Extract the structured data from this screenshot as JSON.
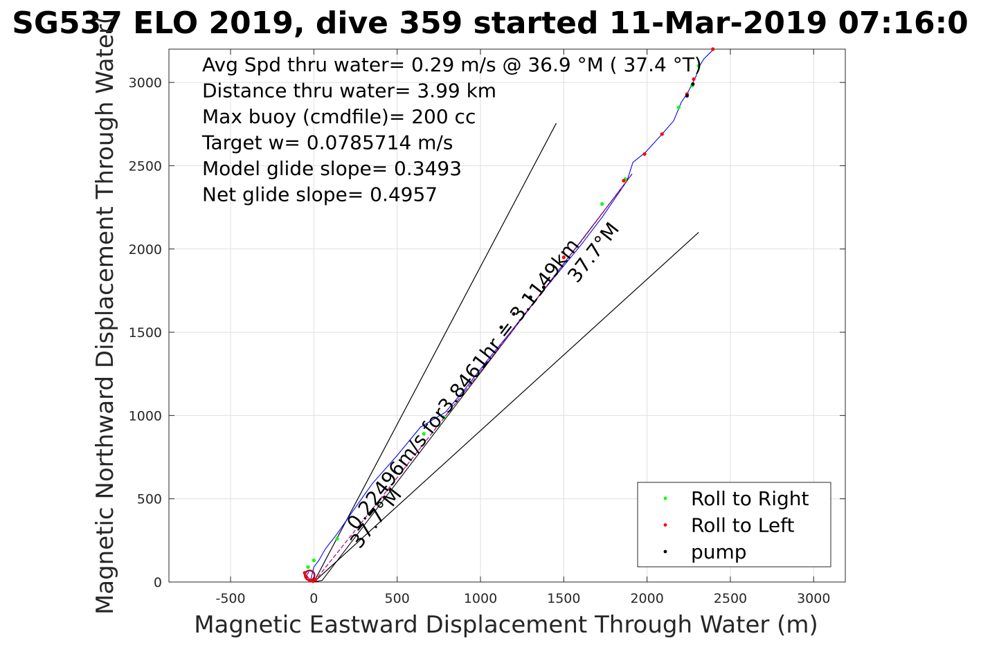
{
  "chart_data": {
    "type": "line",
    "title": "SG537 ELO 2019, dive 359 started 11-Mar-2019 07:16:0",
    "xlabel": "Magnetic Eastward Displacement Through Water (m)",
    "ylabel": "Magnetic Northward Displacement Through Water(",
    "xlim": [
      -870,
      3190
    ],
    "ylim": [
      0,
      3200
    ],
    "xticks": [
      -500,
      0,
      500,
      1000,
      1500,
      2000,
      2500,
      3000
    ],
    "xtick_labels": [
      "-500",
      "0",
      "500",
      "1000",
      "1500",
      "2000",
      "2500",
      "3000"
    ],
    "yticks": [
      0,
      500,
      1000,
      1500,
      2000,
      2500,
      3000
    ],
    "ytick_labels": [
      "0",
      "500",
      "1000",
      "1500",
      "2000",
      "2500",
      "3000"
    ],
    "grid": true,
    "legend_position": "bottom-right",
    "stats": [
      "Avg Spd thru water=  0.29 m/s @  36.9 °M ( 37.4 °T)",
      "Distance thru water=  3.99 km",
      "Max buoy (cmdfile)= 200 cc",
      "Target w= 0.0785714 m/s",
      "Model glide slope= 0.3493",
      "Net glide slope= 0.4957"
    ],
    "annotations": [
      {
        "text": "0.22496m/s for3.8461hr = 3.1149km",
        "x": 255,
        "y": 305,
        "angle": -52
      },
      {
        "text": "37.7°M",
        "x": 275,
        "y": 195,
        "angle": -52
      },
      {
        "text": "37.7°M",
        "x": 1580,
        "y": 1790,
        "angle": -52
      }
    ],
    "cone_lines": [
      {
        "x": [
          0,
          1455
        ],
        "y": [
          0,
          2755
        ],
        "color": "#000000"
      },
      {
        "x": [
          0,
          2310
        ],
        "y": [
          0,
          2100
        ],
        "color": "#000000"
      }
    ],
    "series": [
      {
        "name": "track",
        "color": "#0000ff",
        "x": [
          -30,
          -45,
          -20,
          0,
          30,
          70,
          140,
          230,
          350,
          500,
          640,
          790,
          900,
          1040,
          1180,
          1320,
          1460,
          1600,
          1730,
          1880,
          1915,
          1990,
          2090,
          2160,
          2205,
          2245,
          2270,
          2295,
          2310,
          2340,
          2380,
          2400
        ],
        "y": [
          60,
          40,
          10,
          90,
          130,
          200,
          290,
          420,
          590,
          760,
          930,
          1020,
          1150,
          1330,
          1500,
          1680,
          1850,
          2020,
          2190,
          2410,
          2520,
          2580,
          2690,
          2770,
          2880,
          2940,
          2990,
          3040,
          3090,
          3140,
          3180,
          3200
        ]
      },
      {
        "name": "dive-segment-line",
        "color": "#000000",
        "x": [
          0,
          50,
          1910
        ],
        "y": [
          0,
          10,
          2450
        ]
      },
      {
        "name": "dead-reckoning",
        "color": "#c0008c",
        "x": [
          0,
          400,
          800,
          1200,
          1600,
          1910
        ],
        "y": [
          0,
          500,
          1010,
          1520,
          2040,
          2450
        ]
      },
      {
        "name": "Roll to Right",
        "color": "#00ff00",
        "x": [
          -35,
          0,
          140,
          660,
          780,
          1730,
          1870,
          2190,
          2270,
          2310
        ],
        "y": [
          90,
          130,
          260,
          890,
          990,
          2270,
          2420,
          2850,
          2980,
          3100
        ]
      },
      {
        "name": "Roll to Left",
        "color": "#ff0000",
        "x": [
          -55,
          -45,
          -25,
          -5,
          10,
          1500,
          1860,
          1985,
          2090,
          2240,
          2280,
          2395
        ],
        "y": [
          55,
          30,
          10,
          5,
          15,
          1950,
          2410,
          2570,
          2690,
          2930,
          3020,
          3200
        ]
      },
      {
        "name": "pump",
        "color": "#000000",
        "x": [
          1125,
          1200,
          1300,
          1380,
          2240,
          2275
        ],
        "y": [
          1530,
          1610,
          1710,
          1770,
          2920,
          2990
        ]
      }
    ],
    "legend": [
      {
        "label": "Roll to Right",
        "color": "#00ff00"
      },
      {
        "label": "Roll to Left",
        "color": "#ff0000"
      },
      {
        "label": "pump",
        "color": "#000000"
      }
    ]
  }
}
